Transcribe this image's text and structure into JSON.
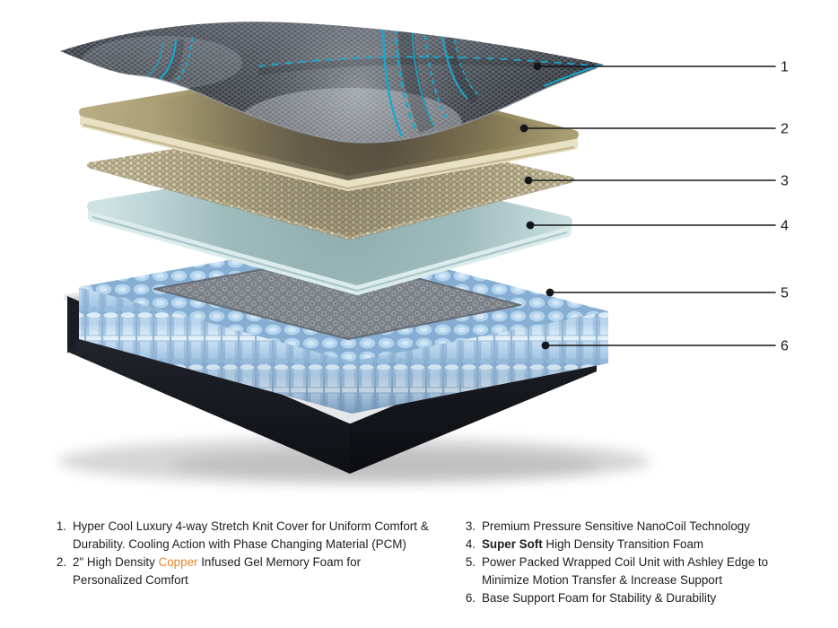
{
  "figure": {
    "type": "exploded-mattress-layer-diagram",
    "layers": [
      {
        "number": "1",
        "name": "stretch-knit-cover",
        "fill": "#2b2f36",
        "accent": "#15a9d0"
      },
      {
        "number": "2",
        "name": "gel-memory-foam",
        "fill": "#a2966e",
        "edge": "#e9e1c3"
      },
      {
        "number": "3",
        "name": "nanocoil-layer",
        "fill": "#a89e7e"
      },
      {
        "number": "4",
        "name": "transition-foam",
        "fill": "#9fbcbd",
        "edge": "#dcecec"
      },
      {
        "number": "5",
        "name": "wrapped-coil-unit",
        "fill": "#b4d5ee",
        "center": "#7c8287"
      },
      {
        "number": "6",
        "name": "base-support-foam",
        "fill": "#a9cdb3",
        "shell": "#1a1d24",
        "trim": "#e7e8ea"
      }
    ],
    "callouts": [
      {
        "number": "1"
      },
      {
        "number": "2"
      },
      {
        "number": "3"
      },
      {
        "number": "4"
      },
      {
        "number": "5"
      },
      {
        "number": "6"
      }
    ],
    "brand_badge": {
      "icon": "signal-bars-badge",
      "color": "#1d7fd0"
    }
  },
  "legend": {
    "accent_color": "#e8882b",
    "columns": [
      {
        "items": [
          {
            "number": "1.",
            "parts": [
              {
                "text": "Hyper Cool Luxury 4-way Stretch Knit Cover for Uniform Comfort &\nDurability. Cooling Action with Phase Changing Material (PCM)"
              }
            ]
          },
          {
            "number": "2.",
            "parts": [
              {
                "text": "2\" High Density "
              },
              {
                "text": "Copper",
                "emphasis": "orange"
              },
              {
                "text": " Infused Gel Memory Foam for\nPersonalized Comfort"
              }
            ]
          }
        ]
      },
      {
        "items": [
          {
            "number": "3.",
            "parts": [
              {
                "text": "Premium Pressure Sensitive NanoCoil Technology"
              }
            ]
          },
          {
            "number": "4.",
            "parts": [
              {
                "text": "Super Soft",
                "emphasis": "bold"
              },
              {
                "text": " High Density Transition Foam"
              }
            ]
          },
          {
            "number": "5.",
            "parts": [
              {
                "text": "Power Packed Wrapped Coil Unit with Ashley Edge to\nMinimize Motion Transfer & Increase Support"
              }
            ]
          },
          {
            "number": "6.",
            "parts": [
              {
                "text": "Base Support Foam for Stability & Durability"
              }
            ]
          }
        ]
      }
    ]
  }
}
